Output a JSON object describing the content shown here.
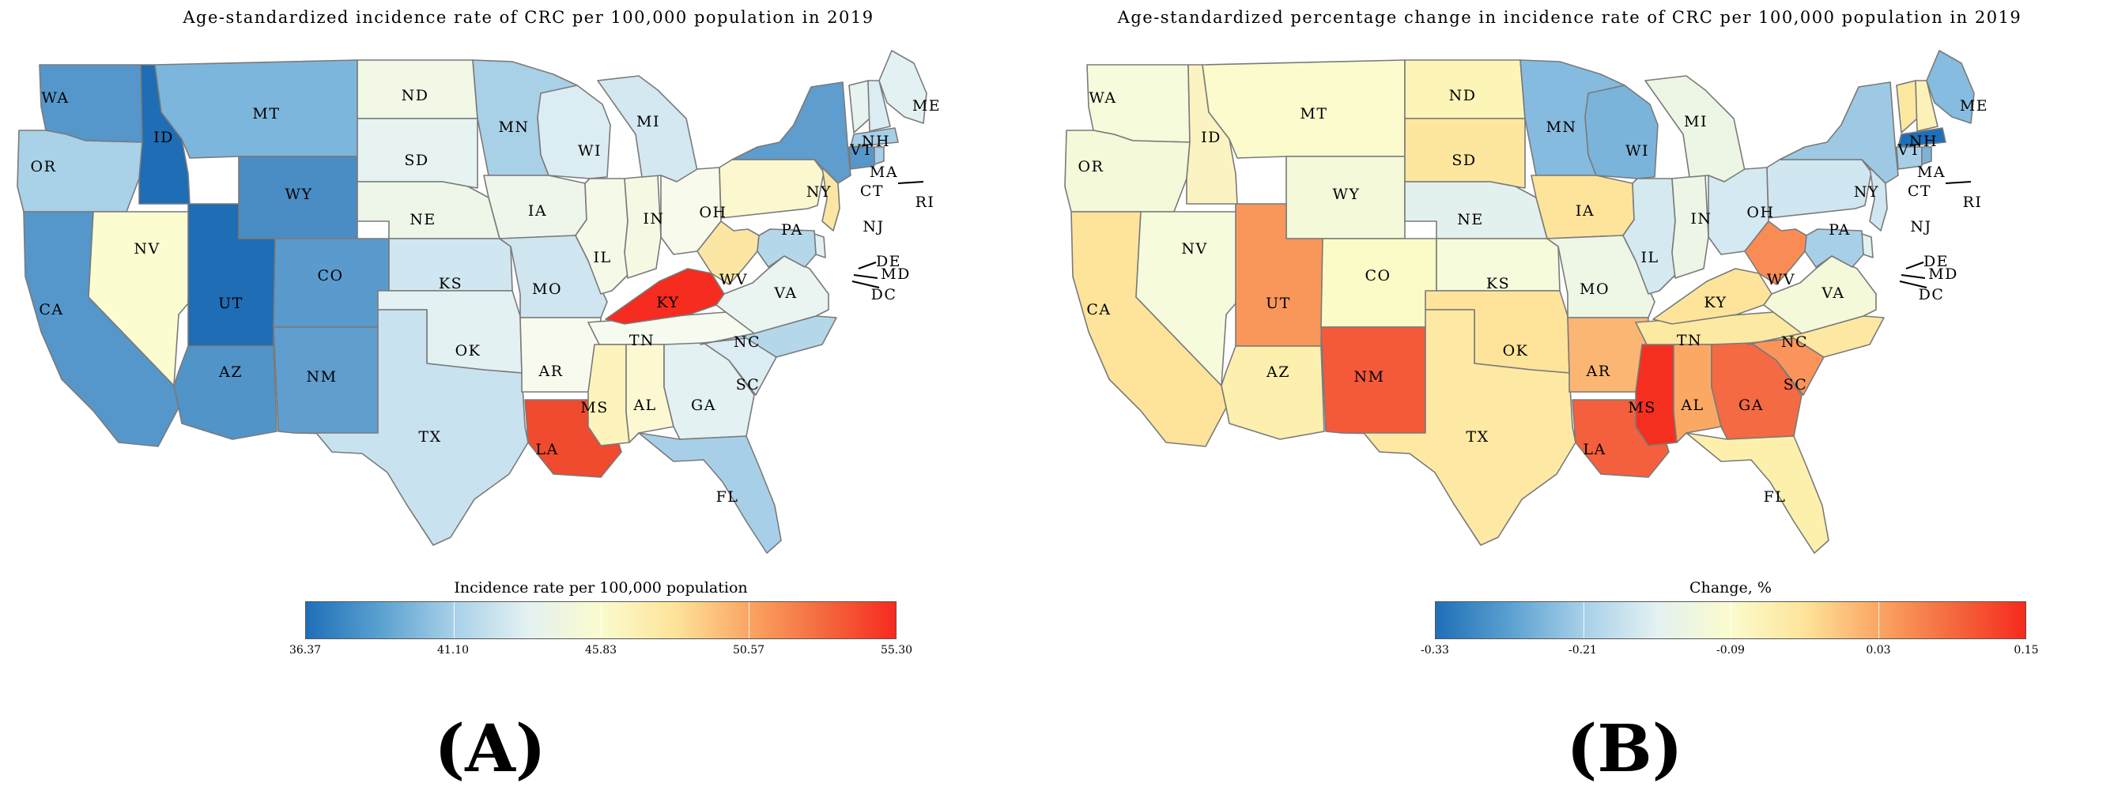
{
  "scale": {
    "colors": [
      "#2166ac",
      "#4393c3",
      "#92c5de",
      "#d1e5f0",
      "#f7f7f7",
      "#fee090",
      "#fdae61",
      "#f46d43",
      "#e8291c"
    ],
    "layout_colors": [
      "#1f6fb8",
      "#5aa0d0",
      "#a7d0e8",
      "#e3f1f2",
      "#fbfbcd",
      "#fde49a",
      "#fba663",
      "#f46a3e",
      "#f62a1e"
    ]
  },
  "states_order": [
    "WA",
    "OR",
    "CA",
    "ID",
    "NV",
    "MT",
    "WY",
    "UT",
    "AZ",
    "CO",
    "NM",
    "ND",
    "SD",
    "NE",
    "KS",
    "OK",
    "TX",
    "MN",
    "IA",
    "MO",
    "AR",
    "LA",
    "WI",
    "IL",
    "MS",
    "TN",
    "AL",
    "KY",
    "IN",
    "MI",
    "OH",
    "GA",
    "FL",
    "SC",
    "NC",
    "VA",
    "WV",
    "PA",
    "NY",
    "ME",
    "VT",
    "NH",
    "MA",
    "CT",
    "RI",
    "NJ",
    "DE",
    "MD"
  ],
  "panel_a": {
    "title": "Age-standardized incidence rate of CRC per 100,000 population in 2019",
    "legend_title": "Incidence rate per 100,000 population",
    "legend_ticks": [
      "36.37",
      "41.10",
      "45.83",
      "50.57",
      "55.30"
    ],
    "legend_min": 36.37,
    "legend_max": 55.3,
    "panel_label": "(A)",
    "fills": {
      "WA": "#5597cb",
      "OR": "#a9d1e7",
      "CA": "#5597cb",
      "ID": "#1e6db5",
      "NV": "#fcfcd1",
      "MT": "#7db6dc",
      "WY": "#4a8cc4",
      "UT": "#1f6db5",
      "AZ": "#5194c8",
      "CO": "#5b9acc",
      "NM": "#5f9ece",
      "ND": "#f1f8e6",
      "SD": "#e6f3f0",
      "NE": "#eef6e8",
      "KS": "#d0e6f0",
      "OK": "#e3f1f2",
      "TX": "#c9e2ef",
      "MN": "#a8d0e7",
      "IA": "#eef6ec",
      "MO": "#cfe5f0",
      "AR": "#f8faed",
      "LA": "#f04a2f",
      "WI": "#dbedf2",
      "IL": "#f5f9e8",
      "MS": "#fdf4bd",
      "TN": "#f6fbf0",
      "AL": "#fcf9d2",
      "KY": "#f52c1f",
      "IN": "#f5f9e4",
      "MI": "#d3e8f1",
      "OH": "#f8faeb",
      "GA": "#e3f1f2",
      "FL": "#a7d0e8",
      "SC": "#dbedf2",
      "NC": "#b4d7ea",
      "VA": "#eaf4f0",
      "WV": "#fbe6a4",
      "PA": "#fbf8cf",
      "NY": "#5e9dcd",
      "ME": "#e3f1f2",
      "VT": "#e6f3f0",
      "NH": "#dbedf2",
      "MA": "#a7d0e8",
      "CT": "#5597cb",
      "RI": "#a7d0e8",
      "NJ": "#fbe6a4",
      "DE": "#e3f1f2",
      "MD": "#b4d7ea"
    }
  },
  "panel_b": {
    "title": "Age-standardized percentage change in incidence rate of CRC per 100,000 population in 2019",
    "legend_title": "Change, %",
    "legend_ticks": [
      "-0.33",
      "-0.21",
      "-0.09",
      "0.03",
      "0.15"
    ],
    "legend_min": -0.33,
    "legend_max": 0.15,
    "panel_label": "(B)",
    "fills": {
      "WA": "#f6fbdc",
      "OR": "#f4f9da",
      "CA": "#fde49a",
      "ID": "#fbf4c2",
      "NV": "#f6fbdc",
      "MT": "#fbfbcd",
      "WY": "#f4f9da",
      "UT": "#f9975a",
      "AZ": "#fdefad",
      "CO": "#fbfbc8",
      "NM": "#f4593a",
      "ND": "#fdf5b8",
      "SD": "#fde79e",
      "NE": "#e3f1ee",
      "KS": "#f6fbdc",
      "OK": "#fde49a",
      "TX": "#fde9a4",
      "MN": "#85bbdf",
      "IA": "#fde49a",
      "MO": "#eef6e6",
      "AR": "#fcb673",
      "LA": "#f4603d",
      "WI": "#7bb4da",
      "IL": "#d5eaf0",
      "MS": "#f42f20",
      "TN": "#fce9a2",
      "AL": "#fca865",
      "KY": "#fde49a",
      "IN": "#edf6e6",
      "MI": "#edf6e4",
      "OH": "#d4e9f1",
      "GA": "#f36a43",
      "FL": "#fdf0ad",
      "SC": "#fb945a",
      "NC": "#fde8a2",
      "VA": "#f4f9da",
      "WV": "#f98c55",
      "PA": "#d0e6f0",
      "NY": "#9ec9e4",
      "ME": "#86bcdf",
      "VT": "#fde8a2",
      "NH": "#fcf2b8",
      "MA": "#1f6fb8",
      "CT": "#a7d0e8",
      "RI": "#7bb4da",
      "NJ": "#d0e6f0",
      "DE": "#e3f1f2",
      "MD": "#a7d0e8"
    }
  }
}
